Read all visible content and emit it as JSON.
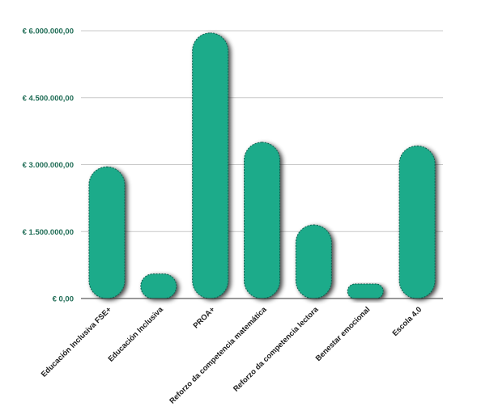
{
  "chart_data": {
    "type": "bar",
    "categories": [
      "Educación Inclusiva FSE+",
      "Educación Inclusiva",
      "PROA+",
      "Reforzo da competencia matemática",
      "Reforzo da competencia lectora",
      "Benestar emocional",
      "Escola 4.0"
    ],
    "values": [
      2950000,
      550000,
      5950000,
      3500000,
      1650000,
      320000,
      3420000
    ],
    "y_ticks": [
      "€ 0,00",
      "€ 1.500.000,00",
      "€ 3.000.000,00",
      "€ 4.500.000,00",
      "€ 6.000.000,00"
    ],
    "y_tick_values": [
      0,
      1500000,
      3000000,
      4500000,
      6000000
    ],
    "ylim": [
      0,
      6000000
    ],
    "grid": true,
    "title": "",
    "xlabel": "",
    "ylabel": ""
  },
  "colors": {
    "bar_fill": "#1aab8a",
    "bar_stroke": "#0f5e4d",
    "tick_label": "#1d6b54",
    "grid": "#c8c8c8",
    "axis": "#333333"
  }
}
